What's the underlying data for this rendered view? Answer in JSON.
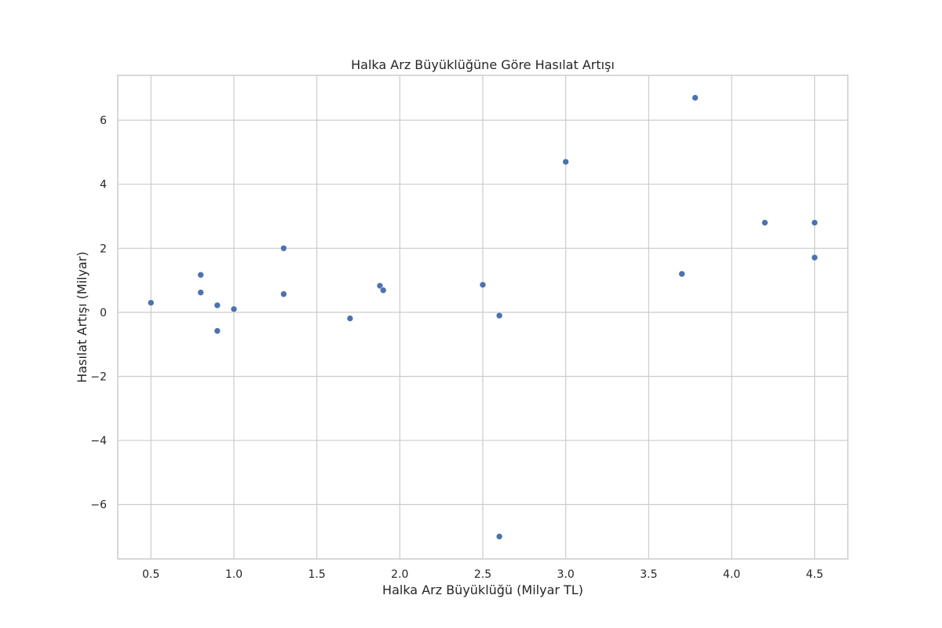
{
  "chart_data": {
    "type": "scatter",
    "title": "Halka Arz Büyüklüğüne Göre Hasılat Artışı",
    "xlabel": "Halka Arz Büyüklüğü (Milyar TL)",
    "ylabel": "Hasılat Artışı (Milyar)",
    "xlim": [
      0.3,
      4.7
    ],
    "ylim": [
      -7.7,
      7.4
    ],
    "xticks": [
      0.5,
      1.0,
      1.5,
      2.0,
      2.5,
      3.0,
      3.5,
      4.0,
      4.5
    ],
    "xtick_labels": [
      "0.5",
      "1.0",
      "1.5",
      "2.0",
      "2.5",
      "3.0",
      "3.5",
      "4.0",
      "4.5"
    ],
    "yticks": [
      -6,
      -4,
      -2,
      0,
      2,
      4,
      6
    ],
    "ytick_labels": [
      "−6",
      "−4",
      "−2",
      "0",
      "2",
      "4",
      "6"
    ],
    "grid": true,
    "color": "#4c72b0",
    "points": [
      {
        "x": 0.5,
        "y": 0.3
      },
      {
        "x": 0.8,
        "y": 1.17
      },
      {
        "x": 0.8,
        "y": 0.62
      },
      {
        "x": 0.9,
        "y": 0.22
      },
      {
        "x": 0.9,
        "y": -0.58
      },
      {
        "x": 1.0,
        "y": 0.1
      },
      {
        "x": 1.3,
        "y": 2.0
      },
      {
        "x": 1.3,
        "y": 0.57
      },
      {
        "x": 1.7,
        "y": -0.19
      },
      {
        "x": 1.88,
        "y": 0.83
      },
      {
        "x": 1.9,
        "y": 0.69
      },
      {
        "x": 2.5,
        "y": 0.86
      },
      {
        "x": 2.6,
        "y": -0.1
      },
      {
        "x": 2.6,
        "y": -7.0
      },
      {
        "x": 3.0,
        "y": 4.7
      },
      {
        "x": 3.7,
        "y": 1.2
      },
      {
        "x": 3.78,
        "y": 6.7
      },
      {
        "x": 4.2,
        "y": 2.8
      },
      {
        "x": 4.5,
        "y": 2.8
      },
      {
        "x": 4.5,
        "y": 1.71
      }
    ]
  }
}
